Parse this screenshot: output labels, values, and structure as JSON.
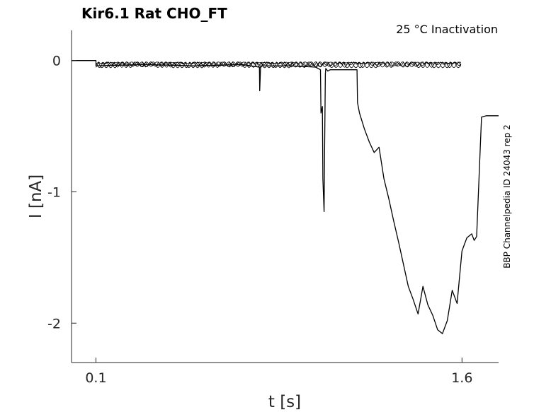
{
  "chart_data": {
    "type": "line",
    "title": "Kir6.1  Rat  CHO_FT",
    "subtitle": "25 °C  Inactivation",
    "xlabel": "t [s]",
    "ylabel": "I [nA]",
    "side_label": "BBP Channelpedia ID 24043 rep 2",
    "xlim": [
      0.0,
      1.75
    ],
    "ylim": [
      -2.3,
      0.23
    ],
    "x_ticks": [
      0.1,
      1.6
    ],
    "x_tick_labels": [
      "0.1",
      "1.6"
    ],
    "y_ticks": [
      0,
      -1,
      -2
    ],
    "y_tick_labels": [
      "0",
      "-1",
      "-2"
    ],
    "grid": false,
    "line_color": "#000000",
    "series": [
      {
        "x": [
          0.0,
          0.1,
          0.1,
          0.3,
          0.5,
          0.7,
          0.77,
          0.771,
          0.775,
          0.9,
          1.0,
          1.02,
          1.022,
          1.028,
          1.03,
          1.035,
          1.037,
          1.04,
          1.042,
          1.05,
          1.06,
          1.1,
          1.17,
          1.172,
          1.18,
          1.2,
          1.22,
          1.24,
          1.26,
          1.28,
          1.3,
          1.32,
          1.34,
          1.36,
          1.38,
          1.4,
          1.42,
          1.44,
          1.46,
          1.48,
          1.5,
          1.52,
          1.54,
          1.56,
          1.58,
          1.6,
          1.62,
          1.64,
          1.65,
          1.66,
          1.68,
          1.7,
          1.75
        ],
        "y": [
          0.0,
          0.0,
          -0.04,
          -0.03,
          -0.04,
          -0.03,
          -0.05,
          -0.23,
          -0.04,
          -0.04,
          -0.05,
          -0.07,
          -0.4,
          -0.35,
          -0.9,
          -1.15,
          -0.7,
          -0.1,
          -0.06,
          -0.08,
          -0.07,
          -0.07,
          -0.07,
          -0.32,
          -0.4,
          -0.52,
          -0.62,
          -0.7,
          -0.66,
          -0.9,
          -1.05,
          -1.22,
          -1.38,
          -1.55,
          -1.72,
          -1.82,
          -1.93,
          -1.72,
          -1.86,
          -1.94,
          -2.05,
          -2.08,
          -1.98,
          -1.75,
          -1.85,
          -1.45,
          -1.35,
          -1.32,
          -1.37,
          -1.34,
          -0.43,
          -0.42,
          -0.42
        ]
      }
    ]
  }
}
